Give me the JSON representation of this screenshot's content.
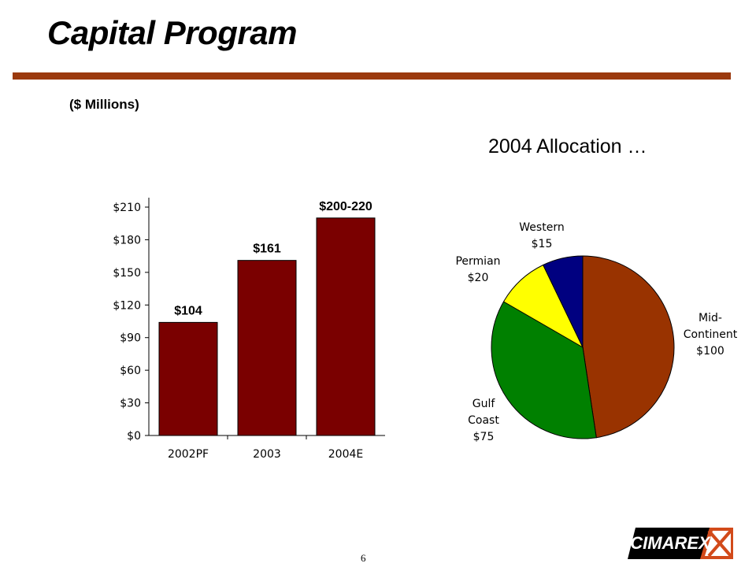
{
  "slide": {
    "title": "Capital Program",
    "units": "($ Millions)",
    "page_number": "6",
    "logo_text": "CIMAREX",
    "colors": {
      "accent_rule": "#9b3a0e",
      "bar": "#7a0000"
    }
  },
  "chart_data": [
    {
      "type": "bar",
      "categories": [
        "2002PF",
        "2003",
        "2004E"
      ],
      "values": [
        104,
        161,
        200
      ],
      "data_labels": [
        "$104",
        "$161",
        "$200-220"
      ],
      "yticks": [
        "$0",
        "$30",
        "$60",
        "$90",
        "$120",
        "$150",
        "$180",
        "$210"
      ],
      "ylim": [
        0,
        210
      ],
      "title": "",
      "xlabel": "",
      "ylabel": "",
      "grid": false
    },
    {
      "type": "pie",
      "title": "2004 Allocation …",
      "slices": [
        {
          "name": "Mid-Continent",
          "value": 100,
          "label_lines": [
            "Mid-",
            "Continent",
            "$100"
          ],
          "color": "#993300"
        },
        {
          "name": "Gulf Coast",
          "value": 75,
          "label_lines": [
            "Gulf",
            "Coast",
            "$75"
          ],
          "color": "#008000"
        },
        {
          "name": "Permian",
          "value": 20,
          "label_lines": [
            "Permian",
            "$20"
          ],
          "color": "#ffff00"
        },
        {
          "name": "Western",
          "value": 15,
          "label_lines": [
            "Western",
            "$15"
          ],
          "color": "#000080"
        }
      ]
    }
  ]
}
